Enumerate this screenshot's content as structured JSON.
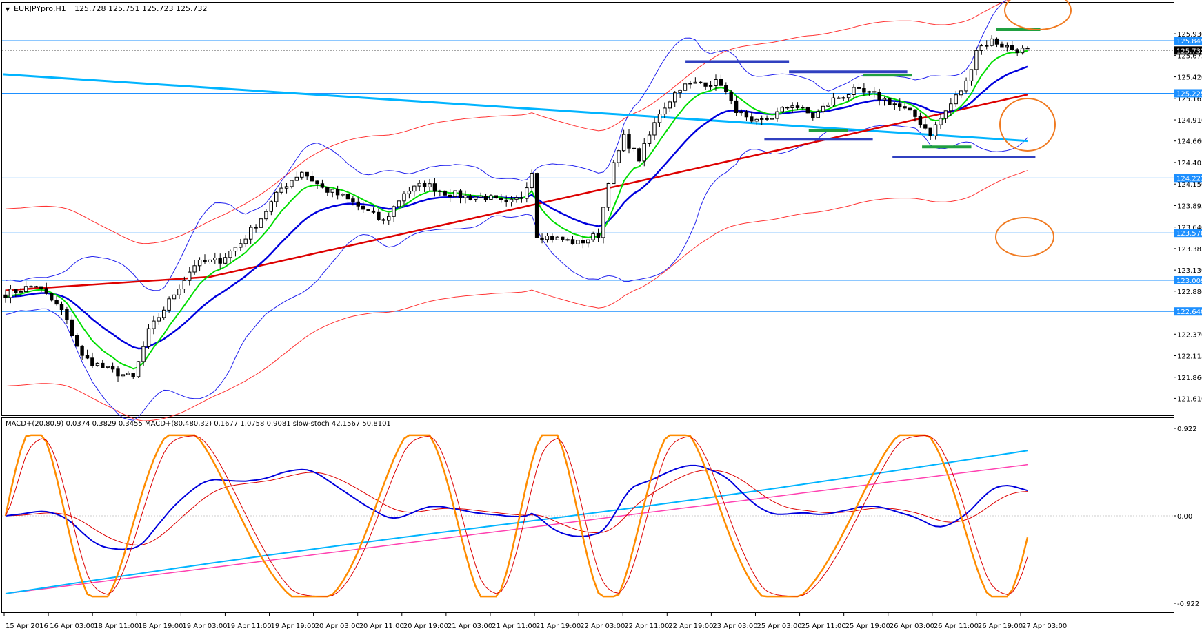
{
  "window": {
    "menu_glyph": "▼",
    "symbol_label": "EURJPYpro,H1",
    "ohlc": "125.728 125.751 125.723 125.732"
  },
  "indicator_caption": "MACD+(20,80,9) 0.0374 0.3829 0.3455   MACD+(80,480,32) 0.1677 1.0758 0.9081   slow-stoch 42.1567 50.8101",
  "colors": {
    "bg": "#ffffff",
    "grid": "#000000",
    "bull": "#ffffff",
    "bear": "#000000",
    "hline": "#1e90ff",
    "tag_blue": "#1e90ff",
    "tag_dark": "#000000",
    "ma_green": "#00dd00",
    "ma_blue": "#0000dd",
    "ma_red": "#dd0000",
    "env": "#ff3333",
    "bb": "#2222ee",
    "trend": "#00b4ff",
    "marker_blue": "#3040c0",
    "marker_green": "#20a040",
    "circle": "#f07a20",
    "stoch": "#ff8c00",
    "stoch_sig": "#dd0000",
    "macd_cyan": "#00b4ff",
    "macd_pink": "#ff40b0"
  },
  "chart_data": [
    {
      "type": "candlestick",
      "title": "EURJPYpro,H1",
      "ylim": [
        121.45,
        126.2
      ],
      "y_ticks": [
        "125.930",
        "125.675",
        "125.420",
        "125.165",
        "124.910",
        "124.660",
        "124.405",
        "124.150",
        "123.895",
        "123.640",
        "123.385",
        "123.130",
        "122.880",
        "122.625",
        "122.370",
        "122.115",
        "121.860",
        "121.610"
      ],
      "price_tags": [
        {
          "label": "125.849",
          "kind": "line"
        },
        {
          "label": "125.732",
          "kind": "current"
        },
        {
          "label": "125.225",
          "kind": "line"
        },
        {
          "label": "124.222",
          "kind": "line"
        },
        {
          "label": "123.570",
          "kind": "line"
        },
        {
          "label": "123.009",
          "kind": "line"
        },
        {
          "label": "122.640",
          "kind": "line"
        }
      ],
      "horizontal_lines": [
        125.849,
        125.225,
        124.222,
        123.57,
        123.009,
        122.64
      ],
      "x_ticks": [
        "15 Apr 2016",
        "16 Apr 03:00",
        "18 Apr 11:00",
        "18 Apr 19:00",
        "19 Apr 03:00",
        "19 Apr 11:00",
        "19 Apr 19:00",
        "20 Apr 03:00",
        "20 Apr 11:00",
        "20 Apr 19:00",
        "21 Apr 03:00",
        "21 Apr 11:00",
        "21 Apr 19:00",
        "22 Apr 03:00",
        "22 Apr 11:00",
        "22 Apr 19:00",
        "23 Apr 03:00",
        "25 Apr 03:00",
        "25 Apr 11:00",
        "25 Apr 19:00",
        "26 Apr 03:00",
        "26 Apr 11:00",
        "26 Apr 19:00",
        "27 Apr 03:00"
      ],
      "close_anchors": [
        [
          0,
          122.85
        ],
        [
          6,
          122.95
        ],
        [
          11,
          122.65
        ],
        [
          15,
          122.1
        ],
        [
          20,
          121.95
        ],
        [
          25,
          121.85
        ],
        [
          28,
          122.4
        ],
        [
          33,
          122.85
        ],
        [
          37,
          123.2
        ],
        [
          42,
          123.25
        ],
        [
          46,
          123.45
        ],
        [
          50,
          123.75
        ],
        [
          54,
          124.1
        ],
        [
          58,
          124.3
        ],
        [
          62,
          124.1
        ],
        [
          66,
          124.0
        ],
        [
          70,
          123.85
        ],
        [
          74,
          123.7
        ],
        [
          78,
          124.05
        ],
        [
          82,
          124.15
        ],
        [
          86,
          124.05
        ],
        [
          90,
          124.0
        ],
        [
          94,
          124.0
        ],
        [
          98,
          123.9
        ],
        [
          101,
          124.0
        ],
        [
          103,
          124.3
        ],
        [
          104,
          123.55
        ],
        [
          108,
          123.5
        ],
        [
          112,
          123.45
        ],
        [
          116,
          123.55
        ],
        [
          118,
          124.2
        ],
        [
          121,
          124.7
        ],
        [
          124,
          124.45
        ],
        [
          128,
          125.0
        ],
        [
          132,
          125.3
        ],
        [
          136,
          125.35
        ],
        [
          140,
          125.35
        ],
        [
          142,
          125.1
        ],
        [
          146,
          124.85
        ],
        [
          150,
          124.95
        ],
        [
          154,
          125.1
        ],
        [
          158,
          124.95
        ],
        [
          162,
          125.15
        ],
        [
          166,
          125.25
        ],
        [
          170,
          125.2
        ],
        [
          174,
          125.1
        ],
        [
          178,
          124.95
        ],
        [
          181,
          124.75
        ],
        [
          185,
          125.1
        ],
        [
          188,
          125.35
        ],
        [
          190,
          125.75
        ],
        [
          193,
          125.85
        ],
        [
          197,
          125.75
        ],
        [
          200,
          125.73
        ]
      ],
      "indicators": [
        "EMA fast (green)",
        "EMA medium (blue)",
        "EMA slow (red)",
        "Bollinger bands (blue)",
        "Envelope (red)",
        "Trend line (cyan)"
      ]
    },
    {
      "type": "line",
      "title": "MACD+(20,80,9) 0.0374 0.3829 0.3455 MACD+(80,480,32) 0.1677 1.0758 0.9081 slow-stoch 42.1567 50.8101",
      "ylim": [
        -0.922,
        0.922
      ],
      "y_ticks": [
        "0.922",
        "0.00",
        "-0.922"
      ],
      "series": [
        {
          "name": "slow-stoch",
          "color": "orange",
          "last": 42.1567
        },
        {
          "name": "slow-stoch signal",
          "color": "red",
          "last": 50.8101
        },
        {
          "name": "MACD+(20,80,9)",
          "color": "blue",
          "last": 0.3829
        },
        {
          "name": "MACD+(80,480,32)",
          "color": "cyan",
          "last": 1.0758
        },
        {
          "name": "MACD+(80,480,32) signal",
          "color": "pink",
          "last": 0.9081
        }
      ]
    }
  ]
}
